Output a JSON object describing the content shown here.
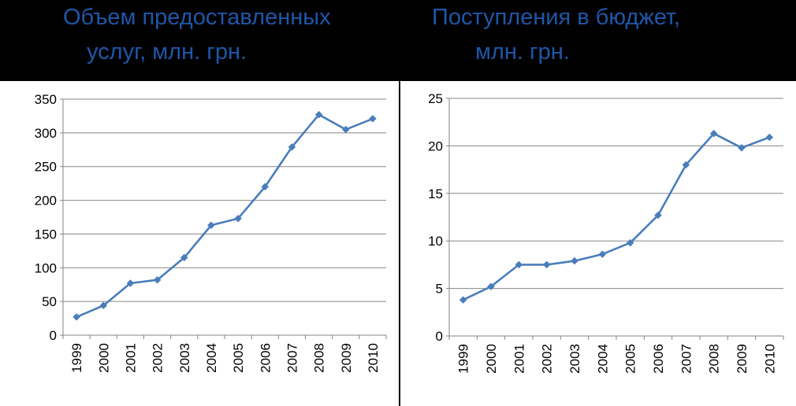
{
  "titles": {
    "left": {
      "line1": "Объем предоставленных",
      "line2": "услуг,  млн. грн."
    },
    "right": {
      "line1": "Поступления в бюджет,",
      "line2": "млн. грн."
    }
  },
  "colors": {
    "series": "#4a7ebb",
    "title": "#1f56a8",
    "grid": "#868686"
  },
  "chart_data": [
    {
      "type": "line",
      "title": "Объем предоставленных услуг,  млн. грн.",
      "categories": [
        "1999",
        "2000",
        "2001",
        "2002",
        "2003",
        "2004",
        "2005",
        "2006",
        "2007",
        "2008",
        "2009",
        "2010"
      ],
      "values": [
        27,
        44,
        77,
        82,
        115,
        163,
        173,
        220,
        279,
        327,
        305,
        321
      ],
      "ylim": [
        0,
        350
      ],
      "yticks": [
        0,
        50,
        100,
        150,
        200,
        250,
        300,
        350
      ],
      "grid": true,
      "marker": "diamond"
    },
    {
      "type": "line",
      "title": "Поступления в бюджет, млн. грн.",
      "categories": [
        "1999",
        "2000",
        "2001",
        "2002",
        "2003",
        "2004",
        "2005",
        "2006",
        "2007",
        "2008",
        "2009",
        "2010"
      ],
      "values": [
        3.8,
        5.2,
        7.5,
        7.5,
        7.9,
        8.6,
        9.8,
        12.7,
        18.0,
        21.3,
        19.8,
        20.9
      ],
      "ylim": [
        0,
        25
      ],
      "yticks": [
        0,
        5,
        10,
        15,
        20,
        25
      ],
      "grid": true,
      "marker": "diamond"
    }
  ]
}
